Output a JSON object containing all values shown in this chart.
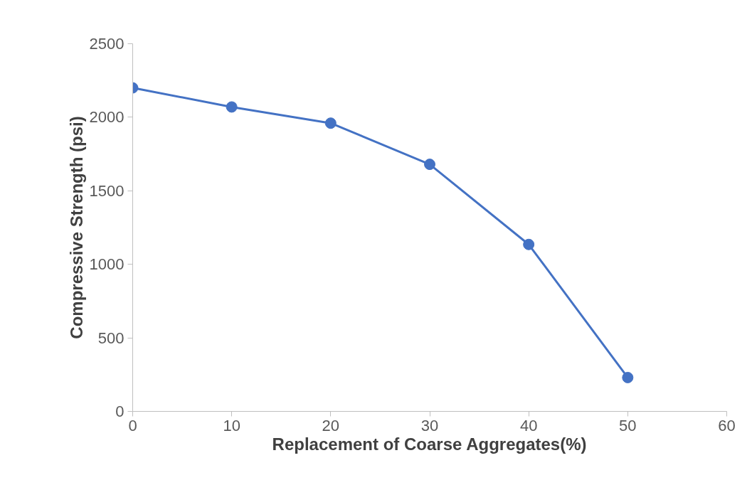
{
  "chart_data": {
    "type": "line",
    "xlabel": "Replacement of Coarse Aggregates(%)",
    "ylabel": "Compressive Strength (psi)",
    "x": [
      0,
      10,
      20,
      30,
      40,
      50
    ],
    "series": [
      {
        "color": "#4472c4",
        "values": [
          2200,
          2070,
          1960,
          1680,
          1135,
          230
        ]
      }
    ],
    "xlim": [
      0,
      60
    ],
    "xticks": [
      0,
      10,
      20,
      30,
      40,
      50,
      60
    ],
    "ylim": [
      0,
      2500
    ],
    "yticks": [
      0,
      500,
      1000,
      1500,
      2000,
      2500
    ],
    "grid": false,
    "marker": "circle",
    "line_style": "solid"
  }
}
